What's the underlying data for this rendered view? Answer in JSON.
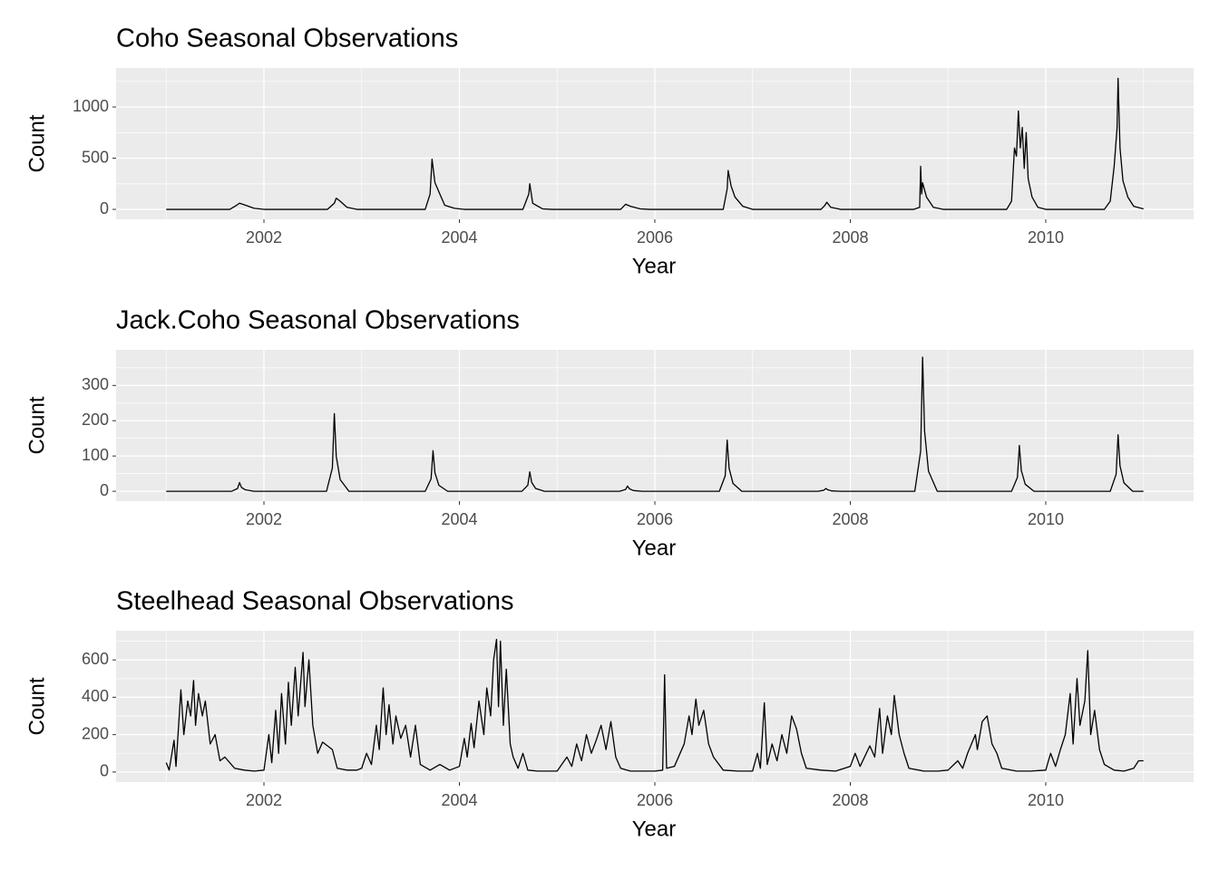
{
  "chart_data": [
    {
      "type": "line",
      "title": "Coho Seasonal Observations",
      "x_label": "Year",
      "y_label": "Count",
      "color": "#000000",
      "grid": true,
      "minor_grid": true,
      "xlim": [
        2000.487,
        2011.513
      ],
      "xticks": [
        2002,
        2004,
        2006,
        2008,
        2010
      ],
      "ylim": [
        -97,
        1381
      ],
      "yticks": [
        0,
        500,
        1000
      ],
      "x": [
        2001.0,
        2001.65,
        2001.72,
        2001.75,
        2001.8,
        2001.9,
        2002.0,
        2002.65,
        2002.72,
        2002.74,
        2002.78,
        2002.85,
        2002.95,
        2003.65,
        2003.7,
        2003.72,
        2003.75,
        2003.8,
        2003.85,
        2003.95,
        2004.05,
        2004.65,
        2004.71,
        2004.72,
        2004.75,
        2004.85,
        2004.95,
        2005.65,
        2005.7,
        2005.75,
        2005.85,
        2005.95,
        2006.7,
        2006.74,
        2006.75,
        2006.78,
        2006.82,
        2006.9,
        2007.0,
        2007.7,
        2007.74,
        2007.76,
        2007.8,
        2007.9,
        2008.65,
        2008.71,
        2008.72,
        2008.73,
        2008.74,
        2008.78,
        2008.85,
        2008.95,
        2009.6,
        2009.65,
        2009.68,
        2009.7,
        2009.72,
        2009.74,
        2009.76,
        2009.78,
        2009.8,
        2009.82,
        2009.86,
        2009.92,
        2010.0,
        2010.6,
        2010.66,
        2010.7,
        2010.73,
        2010.74,
        2010.76,
        2010.79,
        2010.84,
        2010.9,
        2011.0
      ],
      "values": [
        0,
        0,
        40,
        60,
        45,
        10,
        0,
        0,
        60,
        110,
        80,
        20,
        0,
        0,
        150,
        490,
        260,
        150,
        40,
        10,
        0,
        0,
        150,
        250,
        60,
        5,
        0,
        0,
        50,
        30,
        5,
        0,
        0,
        200,
        380,
        230,
        120,
        30,
        0,
        0,
        40,
        70,
        20,
        0,
        0,
        20,
        420,
        150,
        260,
        120,
        20,
        0,
        0,
        80,
        600,
        520,
        960,
        600,
        800,
        400,
        750,
        300,
        120,
        20,
        0,
        0,
        80,
        420,
        800,
        1280,
        600,
        280,
        120,
        30,
        5
      ]
    },
    {
      "type": "line",
      "title": "Jack.Coho Seasonal Observations",
      "x_label": "Year",
      "y_label": "Count",
      "color": "#000000",
      "grid": true,
      "minor_grid": true,
      "xlim": [
        2000.487,
        2011.513
      ],
      "xticks": [
        2002,
        2004,
        2006,
        2008,
        2010
      ],
      "ylim": [
        -28,
        401
      ],
      "yticks": [
        0,
        100,
        200,
        300
      ],
      "x": [
        2001.0,
        2001.67,
        2001.73,
        2001.75,
        2001.77,
        2001.81,
        2001.9,
        2002.64,
        2002.7,
        2002.72,
        2002.74,
        2002.78,
        2002.87,
        2003.65,
        2003.71,
        2003.73,
        2003.75,
        2003.79,
        2003.88,
        2004.64,
        2004.7,
        2004.72,
        2004.74,
        2004.78,
        2004.87,
        2005.64,
        2005.7,
        2005.72,
        2005.74,
        2005.78,
        2005.87,
        2006.66,
        2006.72,
        2006.74,
        2006.76,
        2006.8,
        2006.89,
        2007.67,
        2007.73,
        2007.75,
        2007.77,
        2007.81,
        2007.9,
        2008.66,
        2008.72,
        2008.74,
        2008.76,
        2008.8,
        2008.89,
        2009.65,
        2009.71,
        2009.73,
        2009.75,
        2009.79,
        2009.88,
        2010.66,
        2010.72,
        2010.74,
        2010.76,
        2010.8,
        2010.89,
        2011.0
      ],
      "values": [
        0,
        0,
        8,
        25,
        11,
        4,
        0,
        0,
        66,
        220,
        99,
        33,
        0,
        0,
        35,
        115,
        52,
        17,
        0,
        0,
        17,
        55,
        25,
        8,
        0,
        0,
        5,
        15,
        7,
        2,
        0,
        0,
        44,
        145,
        65,
        22,
        0,
        0,
        3,
        8,
        4,
        1,
        0,
        0,
        114,
        380,
        171,
        57,
        0,
        0,
        39,
        130,
        59,
        20,
        0,
        0,
        48,
        160,
        72,
        24,
        0,
        0
      ]
    },
    {
      "type": "line",
      "title": "Steelhead Seasonal Observations",
      "x_label": "Year",
      "y_label": "Count",
      "color": "#000000",
      "grid": true,
      "minor_grid": true,
      "xlim": [
        2000.487,
        2011.513
      ],
      "xticks": [
        2002,
        2004,
        2006,
        2008,
        2010
      ],
      "ylim": [
        -54,
        756
      ],
      "yticks": [
        0,
        200,
        400,
        600
      ],
      "x": [
        2001.0,
        2001.03,
        2001.08,
        2001.1,
        2001.15,
        2001.18,
        2001.22,
        2001.25,
        2001.28,
        2001.3,
        2001.33,
        2001.37,
        2001.4,
        2001.45,
        2001.5,
        2001.55,
        2001.6,
        2001.7,
        2001.8,
        2001.9,
        2002.0,
        2002.05,
        2002.08,
        2002.12,
        2002.15,
        2002.18,
        2002.22,
        2002.25,
        2002.28,
        2002.32,
        2002.35,
        2002.4,
        2002.42,
        2002.46,
        2002.5,
        2002.55,
        2002.6,
        2002.7,
        2002.75,
        2002.85,
        2002.95,
        2003.0,
        2003.05,
        2003.1,
        2003.15,
        2003.18,
        2003.22,
        2003.25,
        2003.28,
        2003.32,
        2003.35,
        2003.4,
        2003.45,
        2003.5,
        2003.55,
        2003.6,
        2003.7,
        2003.8,
        2003.9,
        2004.0,
        2004.05,
        2004.08,
        2004.12,
        2004.15,
        2004.2,
        2004.25,
        2004.28,
        2004.32,
        2004.35,
        2004.38,
        2004.4,
        2004.42,
        2004.45,
        2004.48,
        2004.52,
        2004.55,
        2004.6,
        2004.65,
        2004.7,
        2004.8,
        2004.9,
        2005.0,
        2005.1,
        2005.15,
        2005.2,
        2005.25,
        2005.3,
        2005.35,
        2005.4,
        2005.45,
        2005.5,
        2005.55,
        2005.6,
        2005.65,
        2005.75,
        2005.9,
        2006.0,
        2006.08,
        2006.1,
        2006.12,
        2006.2,
        2006.3,
        2006.35,
        2006.38,
        2006.42,
        2006.45,
        2006.5,
        2006.55,
        2006.6,
        2006.7,
        2006.85,
        2007.0,
        2007.05,
        2007.08,
        2007.12,
        2007.15,
        2007.2,
        2007.25,
        2007.3,
        2007.35,
        2007.4,
        2007.45,
        2007.5,
        2007.55,
        2007.7,
        2007.85,
        2008.0,
        2008.05,
        2008.1,
        2008.2,
        2008.25,
        2008.3,
        2008.33,
        2008.38,
        2008.42,
        2008.45,
        2008.5,
        2008.55,
        2008.6,
        2008.75,
        2008.9,
        2009.0,
        2009.1,
        2009.15,
        2009.2,
        2009.28,
        2009.3,
        2009.35,
        2009.4,
        2009.45,
        2009.5,
        2009.55,
        2009.7,
        2009.85,
        2010.0,
        2010.05,
        2010.1,
        2010.15,
        2010.2,
        2010.25,
        2010.28,
        2010.32,
        2010.35,
        2010.4,
        2010.43,
        2010.46,
        2010.5,
        2010.55,
        2010.6,
        2010.7,
        2010.8,
        2010.9,
        2010.95,
        2011.0
      ],
      "values": [
        50,
        10,
        170,
        30,
        440,
        200,
        380,
        300,
        490,
        250,
        420,
        300,
        380,
        150,
        200,
        60,
        80,
        20,
        10,
        5,
        10,
        200,
        50,
        330,
        100,
        420,
        150,
        480,
        250,
        560,
        300,
        640,
        350,
        600,
        250,
        100,
        160,
        120,
        20,
        10,
        10,
        20,
        100,
        40,
        250,
        120,
        450,
        200,
        360,
        150,
        300,
        180,
        250,
        80,
        250,
        40,
        10,
        40,
        10,
        30,
        180,
        80,
        260,
        130,
        380,
        200,
        450,
        300,
        600,
        710,
        350,
        700,
        250,
        550,
        150,
        80,
        20,
        100,
        10,
        5,
        5,
        5,
        80,
        30,
        150,
        60,
        200,
        100,
        170,
        250,
        120,
        270,
        80,
        20,
        5,
        5,
        5,
        10,
        520,
        20,
        30,
        150,
        300,
        200,
        390,
        250,
        330,
        150,
        80,
        10,
        5,
        5,
        100,
        20,
        370,
        40,
        150,
        60,
        200,
        100,
        300,
        230,
        100,
        20,
        10,
        5,
        30,
        100,
        30,
        140,
        80,
        340,
        100,
        300,
        200,
        410,
        200,
        100,
        20,
        5,
        5,
        10,
        60,
        20,
        100,
        200,
        120,
        270,
        300,
        150,
        100,
        20,
        5,
        5,
        10,
        100,
        30,
        120,
        200,
        420,
        150,
        500,
        250,
        380,
        650,
        200,
        330,
        120,
        40,
        10,
        5,
        20,
        60,
        60
      ]
    }
  ]
}
